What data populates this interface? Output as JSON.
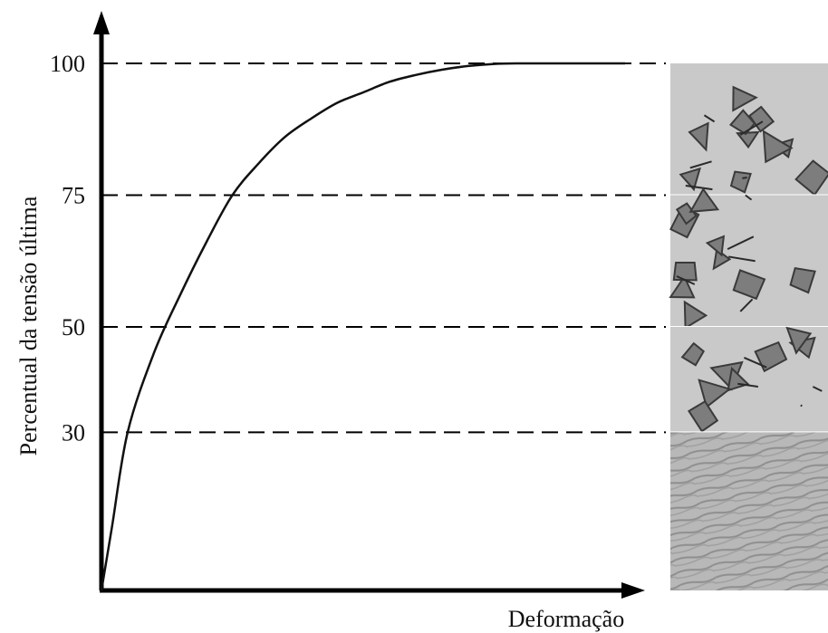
{
  "chart_data": {
    "type": "line",
    "ylabel": "Percentual da tensão última",
    "xlabel": "Deformação",
    "ylim": [
      0,
      100
    ],
    "yticks": [
      30,
      50,
      75,
      100
    ],
    "reference_lines_y": [
      30,
      50,
      75,
      100
    ],
    "x_axis_numbered": false,
    "grid": false,
    "curve": {
      "x": [
        0,
        0.02,
        0.05,
        0.1,
        0.15,
        0.2,
        0.25,
        0.3,
        0.35,
        0.4,
        0.45,
        0.5,
        0.55,
        0.6,
        0.65,
        0.7,
        0.75,
        0.8,
        0.85,
        0.9,
        0.95,
        1.0
      ],
      "y": [
        0,
        12,
        30,
        45,
        56,
        66,
        75,
        81,
        86,
        89.5,
        92.5,
        94.5,
        96.5,
        97.8,
        98.8,
        99.5,
        99.9,
        100,
        100,
        100,
        100,
        100
      ]
    },
    "micrograph_panels": [
      {
        "range": [
          75,
          100
        ],
        "texture": "cracked-aggregate"
      },
      {
        "range": [
          50,
          75
        ],
        "texture": "cracked-aggregate"
      },
      {
        "range": [
          30,
          50
        ],
        "texture": "cracked-aggregate"
      },
      {
        "range": [
          0,
          30
        ],
        "texture": "intact-paste"
      }
    ]
  },
  "colors": {
    "line": "#111111",
    "panel_bg": "#c9c9c9",
    "aggregate_fill": "#7d7d7d",
    "aggregate_stroke": "#3a3a3a",
    "crack": "#2a2a2a"
  }
}
